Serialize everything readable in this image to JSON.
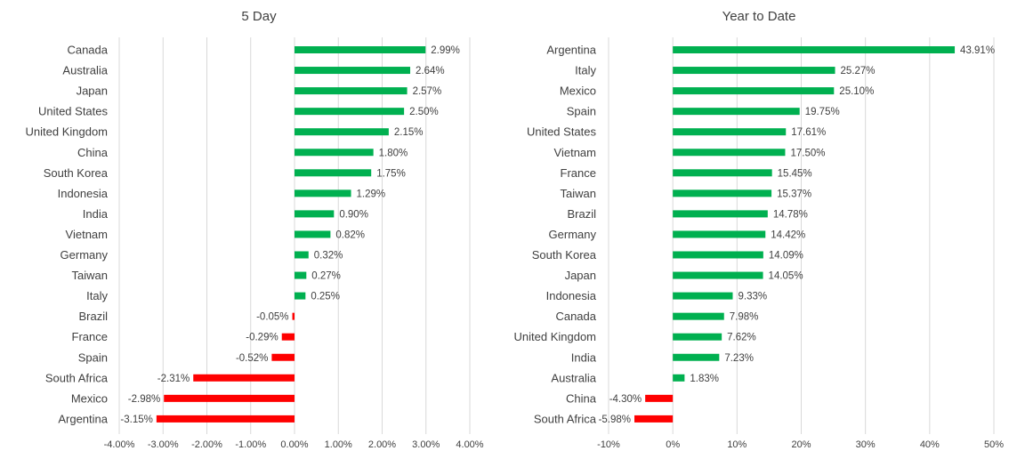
{
  "colors": {
    "positive": "#00b050",
    "negative": "#ff0000",
    "grid": "#d9d9d9",
    "text": "#404040"
  },
  "chart_data": [
    {
      "type": "bar",
      "orientation": "horizontal",
      "title": "5 Day",
      "categories": [
        "Canada",
        "Australia",
        "Japan",
        "United States",
        "United Kingdom",
        "China",
        "South Korea",
        "Indonesia",
        "India",
        "Vietnam",
        "Germany",
        "Taiwan",
        "Italy",
        "Brazil",
        "France",
        "Spain",
        "South Africa",
        "Mexico",
        "Argentina"
      ],
      "values": [
        2.99,
        2.64,
        2.57,
        2.5,
        2.15,
        1.8,
        1.75,
        1.29,
        0.9,
        0.82,
        0.32,
        0.27,
        0.25,
        -0.05,
        -0.29,
        -0.52,
        -2.31,
        -2.98,
        -3.15
      ],
      "data_labels": [
        "2.99%",
        "2.64%",
        "2.57%",
        "2.50%",
        "2.15%",
        "1.80%",
        "1.75%",
        "1.29%",
        "0.90%",
        "0.82%",
        "0.32%",
        "0.27%",
        "0.25%",
        "-0.05%",
        "-0.29%",
        "-0.52%",
        "-2.31%",
        "-2.98%",
        "-3.15%"
      ],
      "xlim": [
        -4,
        4
      ],
      "xticks": [
        -4,
        -3,
        -2,
        -1,
        0,
        1,
        2,
        3,
        4
      ],
      "xtick_labels": [
        "-4.00%",
        "-3.00%",
        "-2.00%",
        "-1.00%",
        "0.00%",
        "1.00%",
        "2.00%",
        "3.00%",
        "4.00%"
      ],
      "unit": "%",
      "grid": true
    },
    {
      "type": "bar",
      "orientation": "horizontal",
      "title": "Year to Date",
      "categories": [
        "Argentina",
        "Italy",
        "Mexico",
        "Spain",
        "United States",
        "Vietnam",
        "France",
        "Taiwan",
        "Brazil",
        "Germany",
        "South Korea",
        "Japan",
        "Indonesia",
        "Canada",
        "United Kingdom",
        "India",
        "Australia",
        "China",
        "South Africa"
      ],
      "values": [
        43.91,
        25.27,
        25.1,
        19.75,
        17.61,
        17.5,
        15.45,
        15.37,
        14.78,
        14.42,
        14.09,
        14.05,
        9.33,
        7.98,
        7.62,
        7.23,
        1.83,
        -4.3,
        -5.98
      ],
      "data_labels": [
        "43.91%",
        "25.27%",
        "25.10%",
        "19.75%",
        "17.61%",
        "17.50%",
        "15.45%",
        "15.37%",
        "14.78%",
        "14.42%",
        "14.09%",
        "14.05%",
        "9.33%",
        "7.98%",
        "7.62%",
        "7.23%",
        "1.83%",
        "-4.30%",
        "-5.98%"
      ],
      "xlim": [
        -10,
        50
      ],
      "xticks": [
        -10,
        0,
        10,
        20,
        30,
        40,
        50
      ],
      "xtick_labels": [
        "-10%",
        "0%",
        "10%",
        "20%",
        "30%",
        "40%",
        "50%"
      ],
      "unit": "%",
      "grid": true
    }
  ]
}
